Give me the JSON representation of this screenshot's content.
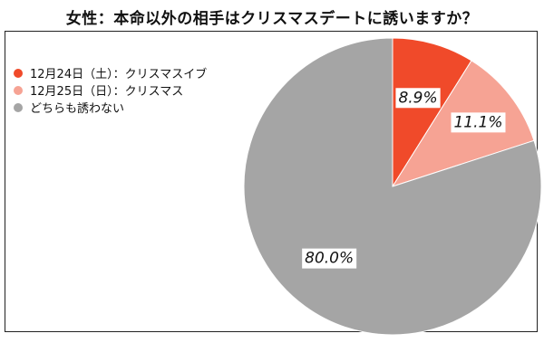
{
  "chart_data": {
    "type": "pie",
    "title": "女性：本命以外の相手はクリスマスデートに誘いますか？",
    "categories": [
      "12月24日（土）：クリスマスイブ",
      "12月25日（日）：クリスマス",
      "どちらも誘わない"
    ],
    "values": [
      8.9,
      11.1,
      80.0
    ],
    "data_labels": [
      "8.9%",
      "11.1%",
      "80.0%"
    ],
    "colors": [
      "#f04a2a",
      "#f6a394",
      "#a5a5a5"
    ],
    "legend_position": "top-left"
  }
}
